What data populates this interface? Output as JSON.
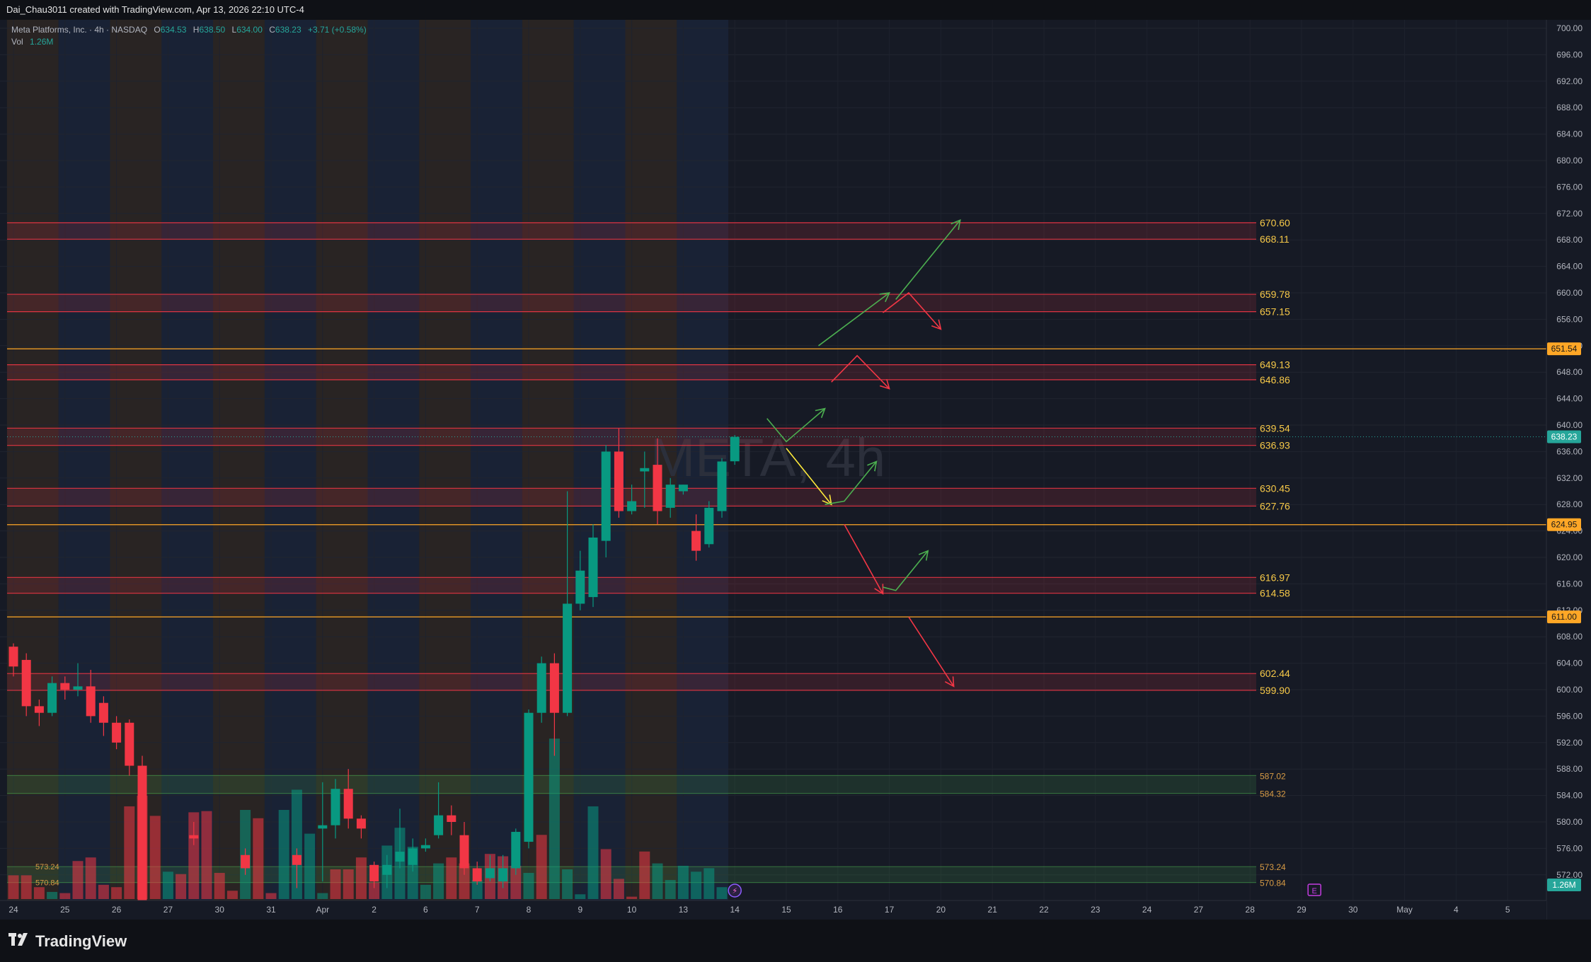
{
  "header": {
    "created_by": "Dai_Chau3011 created with TradingView.com, Apr 13, 2026 22:10 UTC-4"
  },
  "legend": {
    "symbol_line": "Meta Platforms, Inc. · 4h · NASDAQ",
    "o_label": "O",
    "o_value": "634.53",
    "h_label": "H",
    "h_value": "638.50",
    "l_label": "L",
    "l_value": "634.00",
    "c_label": "C",
    "c_value": "638.23",
    "change": "+3.71 (+0.58%)",
    "vol_label": "Vol",
    "vol_value": "1.26M"
  },
  "watermark": "META, 4h",
  "footer": {
    "brand": "TradingView",
    "logo_icon": "tradingview-logo-icon"
  },
  "colors": {
    "background": "#161a25",
    "bull": "#089981",
    "bear": "#f23645",
    "zone_red": "#f23645",
    "zone_green": "#4caf50",
    "level_orange": "#ffa726",
    "zone_label": "#f7c948",
    "arrow_green": "#4caf50",
    "arrow_red": "#f23645",
    "arrow_yellow": "#ffeb3b"
  },
  "chart_data": {
    "type": "candlestick",
    "symbol": "META",
    "timeframe": "4h",
    "y_axis": {
      "range": [
        568,
        702
      ],
      "ticks": [
        "700.00",
        "696.00",
        "692.00",
        "688.00",
        "684.00",
        "680.00",
        "676.00",
        "672.00",
        "668.00",
        "664.00",
        "660.00",
        "656.00",
        "652.00",
        "648.00",
        "644.00",
        "640.00",
        "636.00",
        "632.00",
        "628.00",
        "624.00",
        "620.00",
        "616.00",
        "612.00",
        "608.00",
        "604.00",
        "600.00",
        "596.00",
        "592.00",
        "588.00",
        "584.00",
        "580.00",
        "576.00",
        "572.00"
      ],
      "last_price": "638.23",
      "last_volume": "1.26M"
    },
    "x_axis": {
      "ticks": [
        {
          "label": "24",
          "bar": 0
        },
        {
          "label": "25",
          "bar": 4
        },
        {
          "label": "26",
          "bar": 8
        },
        {
          "label": "27",
          "bar": 12
        },
        {
          "label": "30",
          "bar": 16
        },
        {
          "label": "31",
          "bar": 20
        },
        {
          "label": "Apr",
          "bar": 24
        },
        {
          "label": "2",
          "bar": 28
        },
        {
          "label": "6",
          "bar": 32
        },
        {
          "label": "7",
          "bar": 36
        },
        {
          "label": "8",
          "bar": 40
        },
        {
          "label": "9",
          "bar": 44
        },
        {
          "label": "10",
          "bar": 48
        },
        {
          "label": "13",
          "bar": 52
        },
        {
          "label": "14",
          "bar": 56
        },
        {
          "label": "15",
          "bar": 60
        },
        {
          "label": "16",
          "bar": 64
        },
        {
          "label": "17",
          "bar": 68
        },
        {
          "label": "20",
          "bar": 72
        },
        {
          "label": "21",
          "bar": 76
        },
        {
          "label": "22",
          "bar": 80
        },
        {
          "label": "23",
          "bar": 84
        },
        {
          "label": "24",
          "bar": 88
        },
        {
          "label": "27",
          "bar": 92
        },
        {
          "label": "28",
          "bar": 96
        },
        {
          "label": "29",
          "bar": 100
        },
        {
          "label": "30",
          "bar": 104
        },
        {
          "label": "May",
          "bar": 108
        },
        {
          "label": "4",
          "bar": 112
        },
        {
          "label": "5",
          "bar": 116
        }
      ]
    },
    "candles": [
      [
        0,
        606.5,
        603.5,
        607.0,
        602.0
      ],
      [
        1,
        604.5,
        597.5,
        605.5,
        596.0
      ],
      [
        2,
        597.5,
        596.5,
        598.5,
        594.5
      ],
      [
        3,
        596.5,
        601.0,
        602.0,
        596.0
      ],
      [
        4,
        601.0,
        600.0,
        602.0,
        598.5
      ],
      [
        5,
        600.0,
        600.5,
        604.0,
        599.0
      ],
      [
        6,
        600.5,
        596.0,
        603.0,
        595.0
      ],
      [
        7,
        598.0,
        595.0,
        599.0,
        593.0
      ],
      [
        8,
        595.0,
        592.0,
        596.0,
        591.0
      ],
      [
        9,
        595.0,
        588.5,
        595.5,
        587.0
      ],
      [
        10,
        588.5,
        568.0,
        590.0,
        568.0
      ],
      [
        14,
        578.0,
        577.5,
        580.0,
        576.5
      ],
      [
        18,
        575.0,
        573.0,
        576.0,
        572.0
      ],
      [
        22,
        575.0,
        573.5,
        576.0,
        570.0
      ],
      [
        24,
        579.0,
        579.5,
        586.0,
        571.0
      ],
      [
        25,
        579.5,
        585.0,
        586.5,
        577.5
      ],
      [
        26,
        585.0,
        580.5,
        588.0,
        579.0
      ],
      [
        27,
        580.5,
        579.0,
        581.0,
        577.5
      ],
      [
        28,
        573.5,
        571.0,
        574.0,
        570.0
      ],
      [
        29,
        572.0,
        573.5,
        575.0,
        570.0
      ],
      [
        30,
        574.0,
        575.5,
        582.0,
        573.0
      ],
      [
        31,
        573.5,
        576.0,
        577.5,
        572.5
      ],
      [
        32,
        576.0,
        576.5,
        577.5,
        575.5
      ],
      [
        33,
        578.0,
        581.0,
        586.0,
        577.5
      ],
      [
        34,
        581.0,
        580.0,
        582.5,
        578.0
      ],
      [
        35,
        578.0,
        573.0,
        580.0,
        572.0
      ],
      [
        36,
        573.0,
        571.0,
        574.0,
        570.5
      ],
      [
        37,
        571.5,
        573.0,
        575.0,
        571.0
      ],
      [
        38,
        571.0,
        573.0,
        575.0,
        570.0
      ],
      [
        39,
        573.0,
        578.5,
        579.0,
        572.0
      ],
      [
        40,
        577.0,
        596.5,
        597.0,
        576.0
      ],
      [
        41,
        596.5,
        604.0,
        605.0,
        595.0
      ],
      [
        42,
        604.0,
        596.5,
        605.5,
        590.0
      ],
      [
        43,
        596.5,
        613.0,
        630.0,
        596.0
      ],
      [
        44,
        613.0,
        618.0,
        621.0,
        612.0
      ],
      [
        45,
        614.0,
        623.0,
        625.0,
        612.5
      ],
      [
        46,
        622.5,
        636.0,
        637.0,
        620.0
      ],
      [
        47,
        636.0,
        627.0,
        639.5,
        626.0
      ],
      [
        48,
        627.0,
        628.5,
        631.0,
        626.5
      ],
      [
        49,
        633.0,
        633.5,
        636.0,
        627.5
      ],
      [
        50,
        634.0,
        627.0,
        638.0,
        625.0
      ],
      [
        51,
        627.5,
        631.0,
        632.0,
        626.0
      ],
      [
        52,
        630.0,
        631.0,
        631.0,
        629.5
      ],
      [
        53,
        624.0,
        621.0,
        626.5,
        619.5
      ],
      [
        54,
        622.0,
        627.5,
        628.5,
        621.5
      ],
      [
        55,
        627.0,
        634.5,
        635.0,
        626.0
      ],
      [
        56,
        634.53,
        638.23,
        638.5,
        634.0
      ]
    ],
    "volumes": [
      [
        0,
        "bear",
        0.2
      ],
      [
        1,
        "bear",
        0.2
      ],
      [
        2,
        "bear",
        0.1
      ],
      [
        3,
        "bull",
        0.06
      ],
      [
        4,
        "bear",
        0.05
      ],
      [
        5,
        "bear",
        0.32
      ],
      [
        6,
        "bear",
        0.35
      ],
      [
        7,
        "bear",
        0.12
      ],
      [
        8,
        "bear",
        0.1
      ],
      [
        9,
        "bear",
        0.78
      ],
      [
        10,
        "bear",
        0.87
      ],
      [
        11,
        "bear",
        0.7
      ],
      [
        12,
        "bull",
        0.23
      ],
      [
        13,
        "bear",
        0.21
      ],
      [
        14,
        "bear",
        0.73
      ],
      [
        15,
        "bear",
        0.74
      ],
      [
        16,
        "bear",
        0.22
      ],
      [
        17,
        "bear",
        0.07
      ],
      [
        18,
        "bull",
        0.75
      ],
      [
        19,
        "bear",
        0.68
      ],
      [
        20,
        "bear",
        0.05
      ],
      [
        21,
        "bull",
        0.75
      ],
      [
        22,
        "bull",
        0.92
      ],
      [
        23,
        "bull",
        0.55
      ],
      [
        24,
        "bull",
        0.05
      ],
      [
        25,
        "bear",
        0.25
      ],
      [
        26,
        "bear",
        0.25
      ],
      [
        27,
        "bear",
        0.35
      ],
      [
        28,
        "bear",
        0.14
      ],
      [
        29,
        "bull",
        0.45
      ],
      [
        30,
        "bull",
        0.6
      ],
      [
        31,
        "bull",
        0.44
      ],
      [
        32,
        "bull",
        0.12
      ],
      [
        33,
        "bull",
        0.3
      ],
      [
        34,
        "bear",
        0.35
      ],
      [
        35,
        "bear",
        0.3
      ],
      [
        36,
        "bull",
        0.16
      ],
      [
        37,
        "bear",
        0.38
      ],
      [
        38,
        "bear",
        0.36
      ],
      [
        39,
        "bear",
        0.28
      ],
      [
        40,
        "bull",
        0.22
      ],
      [
        41,
        "bear",
        0.54
      ],
      [
        42,
        "bull",
        1.35
      ],
      [
        43,
        "bull",
        0.25
      ],
      [
        44,
        "bull",
        0.04
      ],
      [
        45,
        "bull",
        0.78
      ],
      [
        46,
        "bear",
        0.42
      ],
      [
        47,
        "bear",
        0.17
      ],
      [
        48,
        "bear",
        0.02
      ],
      [
        49,
        "bear",
        0.4
      ],
      [
        50,
        "bull",
        0.3
      ],
      [
        51,
        "bull",
        0.16
      ],
      [
        52,
        "bull",
        0.28
      ],
      [
        53,
        "bull",
        0.23
      ],
      [
        54,
        "bull",
        0.26
      ],
      [
        55,
        "bull",
        0.1
      ]
    ],
    "zones": [
      {
        "top": 670.6,
        "bottom": 668.11,
        "color": "red",
        "top_label": "670.60",
        "bottom_label": "668.11"
      },
      {
        "top": 659.78,
        "bottom": 657.15,
        "color": "red",
        "top_label": "659.78",
        "bottom_label": "657.15"
      },
      {
        "top": 649.13,
        "bottom": 646.86,
        "color": "red",
        "top_label": "649.13",
        "bottom_label": "646.86"
      },
      {
        "top": 639.54,
        "bottom": 636.93,
        "color": "red",
        "top_label": "639.54",
        "bottom_label": "636.93"
      },
      {
        "top": 630.45,
        "bottom": 627.76,
        "color": "red",
        "top_label": "630.45",
        "bottom_label": "627.76"
      },
      {
        "top": 616.97,
        "bottom": 614.58,
        "color": "red",
        "top_label": "616.97",
        "bottom_label": "614.58"
      },
      {
        "top": 602.44,
        "bottom": 599.9,
        "color": "red",
        "top_label": "602.44",
        "bottom_label": "599.90"
      },
      {
        "top": 587.02,
        "bottom": 584.32,
        "color": "green",
        "top_label": "587.02",
        "bottom_label": "584.32"
      },
      {
        "top": 573.24,
        "bottom": 570.84,
        "color": "green",
        "top_label": "573.24",
        "bottom_label": "570.84"
      }
    ],
    "levels": [
      {
        "price": 651.54,
        "label": "651.54"
      },
      {
        "price": 624.95,
        "label": "624.95"
      },
      {
        "price": 611.0,
        "label": "611.00"
      }
    ],
    "projection_paths": [
      {
        "color": "green",
        "points": [
          [
            62.5,
            652.0
          ],
          [
            68.0,
            660.0
          ]
        ]
      },
      {
        "color": "green",
        "points": [
          [
            68.5,
            659.0
          ],
          [
            73.5,
            671.0
          ]
        ]
      },
      {
        "color": "red",
        "points": [
          [
            67.5,
            657.0
          ],
          [
            69.5,
            660.0
          ],
          [
            72.0,
            654.5
          ]
        ]
      },
      {
        "color": "red",
        "points": [
          [
            63.5,
            646.5
          ],
          [
            65.5,
            650.5
          ],
          [
            68.0,
            645.5
          ]
        ]
      },
      {
        "color": "green",
        "points": [
          [
            58.5,
            641.0
          ],
          [
            60.0,
            637.5
          ],
          [
            63.0,
            642.5
          ]
        ]
      },
      {
        "color": "yellow",
        "points": [
          [
            60.0,
            636.5
          ],
          [
            63.5,
            628.0
          ]
        ]
      },
      {
        "color": "green",
        "points": [
          [
            63.0,
            628.0
          ],
          [
            64.5,
            628.5
          ],
          [
            67.0,
            634.5
          ]
        ]
      },
      {
        "color": "red",
        "points": [
          [
            64.5,
            625.0
          ],
          [
            67.5,
            614.5
          ]
        ]
      },
      {
        "color": "green",
        "points": [
          [
            67.5,
            615.5
          ],
          [
            68.5,
            615.0
          ],
          [
            71.0,
            621.0
          ]
        ]
      },
      {
        "color": "red",
        "points": [
          [
            69.5,
            611.0
          ],
          [
            73.0,
            600.5
          ]
        ]
      }
    ],
    "session_bands": [
      {
        "from": 0,
        "to": 4,
        "tint": "orange"
      },
      {
        "from": 4,
        "to": 8,
        "tint": "blue"
      },
      {
        "from": 8,
        "to": 12,
        "tint": "orange"
      },
      {
        "from": 12,
        "to": 16,
        "tint": "blue"
      },
      {
        "from": 16,
        "to": 20,
        "tint": "orange"
      },
      {
        "from": 20,
        "to": 24,
        "tint": "blue"
      },
      {
        "from": 24,
        "to": 28,
        "tint": "orange"
      },
      {
        "from": 28,
        "to": 32,
        "tint": "blue"
      },
      {
        "from": 32,
        "to": 36,
        "tint": "orange"
      },
      {
        "from": 36,
        "to": 40,
        "tint": "blue"
      },
      {
        "from": 40,
        "to": 44,
        "tint": "orange"
      },
      {
        "from": 44,
        "to": 48,
        "tint": "blue"
      },
      {
        "from": 48,
        "to": 52,
        "tint": "orange"
      },
      {
        "from": 52,
        "to": 56,
        "tint": "blue"
      }
    ],
    "event_markers": [
      {
        "type": "earnings",
        "symbol": "E",
        "bar": 101
      },
      {
        "type": "dividend",
        "symbol": "⚡",
        "bar": 56
      }
    ]
  }
}
